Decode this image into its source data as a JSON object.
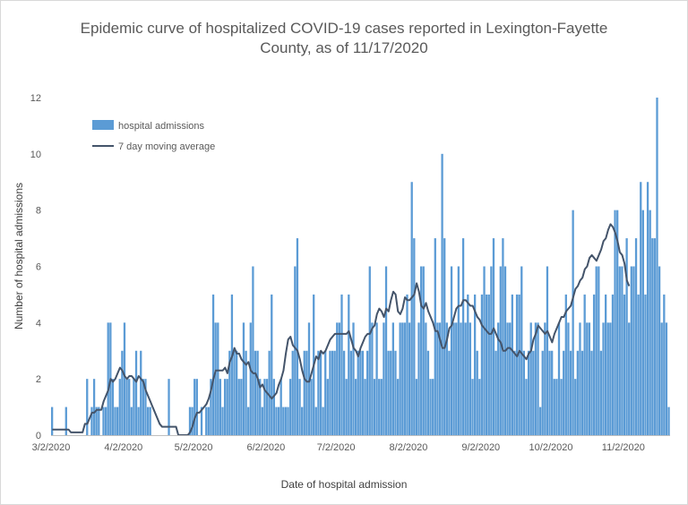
{
  "chart_data": {
    "type": "bar",
    "title_line1": "Epidemic curve of hospitalized COVID-19 cases reported in Lexington-Fayette",
    "title_line2": "County, as of 11/17/2020",
    "xlabel": "Date of hospital admission",
    "ylabel": "Number of hospital admissions",
    "ylim": [
      0,
      12
    ],
    "yticks": [
      0,
      2,
      4,
      6,
      8,
      10,
      12
    ],
    "start_date": "3/2/2020",
    "xtick_labels": [
      "3/2/2020",
      "4/2/2020",
      "5/2/2020",
      "6/2/2020",
      "7/2/2020",
      "8/2/2020",
      "9/2/2020",
      "10/2/2020",
      "11/2/2020"
    ],
    "xtick_day_index": [
      0,
      31,
      61,
      92,
      122,
      153,
      184,
      214,
      245
    ],
    "grid": false,
    "legend": {
      "position": "top-left",
      "entries": [
        "hospital admissions",
        "7 day moving average"
      ]
    },
    "colors": {
      "bars": "#5b9bd5",
      "line": "#44546a"
    },
    "series": [
      {
        "name": "hospital admissions",
        "values": [
          1,
          0,
          0,
          0,
          0,
          0,
          1,
          0,
          0,
          0,
          0,
          0,
          0,
          0,
          0,
          2,
          0,
          1,
          2,
          1,
          1,
          0,
          1,
          1,
          4,
          4,
          2,
          1,
          1,
          2,
          3,
          4,
          2,
          2,
          1,
          2,
          3,
          1,
          3,
          2,
          2,
          1,
          1,
          0,
          0,
          0,
          0,
          0,
          0,
          0,
          2,
          0,
          0,
          0,
          0,
          0,
          0,
          0,
          0,
          1,
          1,
          2,
          2,
          0,
          1,
          0,
          1,
          1,
          2,
          5,
          4,
          4,
          2,
          1,
          2,
          2,
          3,
          5,
          3,
          3,
          2,
          2,
          4,
          3,
          1,
          4,
          6,
          3,
          3,
          2,
          1,
          2,
          2,
          3,
          5,
          2,
          1,
          1,
          2,
          1,
          1,
          1,
          2,
          3,
          6,
          7,
          2,
          1,
          3,
          3,
          4,
          2,
          5,
          1,
          3,
          3,
          1,
          3,
          2,
          3,
          3,
          3,
          4,
          4,
          5,
          3,
          2,
          5,
          3,
          4,
          2,
          3,
          3,
          3,
          2,
          3,
          6,
          4,
          2,
          4,
          2,
          2,
          4,
          6,
          3,
          3,
          4,
          3,
          2,
          4,
          4,
          4,
          5,
          4,
          9,
          7,
          2,
          4,
          6,
          6,
          4,
          3,
          2,
          2,
          7,
          4,
          4,
          10,
          7,
          4,
          3,
          6,
          4,
          4,
          6,
          4,
          7,
          4,
          5,
          4,
          2,
          5,
          3,
          2,
          5,
          6,
          5,
          5,
          6,
          7,
          3,
          4,
          6,
          7,
          6,
          4,
          4,
          5,
          3,
          5,
          5,
          6,
          3,
          2,
          3,
          4,
          3,
          4,
          4,
          1,
          3,
          4,
          6,
          3,
          3,
          2,
          2,
          4,
          2,
          3,
          5,
          4,
          3,
          8,
          2,
          3,
          4,
          3,
          5,
          4,
          4,
          3,
          5,
          6,
          6,
          3,
          4,
          5,
          4,
          4,
          5,
          8,
          8,
          6,
          6,
          5,
          7,
          4,
          6,
          6,
          7,
          5,
          9,
          8,
          5,
          9,
          8,
          7,
          7,
          12,
          6,
          4,
          5,
          4,
          1
        ]
      },
      {
        "name": "7 day moving average",
        "values": [
          0.2,
          0.2,
          0.2,
          0.2,
          0.2,
          0.2,
          0.2,
          0.2,
          0.1,
          0.1,
          0.1,
          0.1,
          0.1,
          0.1,
          0.4,
          0.4,
          0.6,
          0.8,
          0.8,
          0.9,
          0.9,
          0.9,
          1.2,
          1.4,
          1.6,
          2.0,
          1.9,
          2.0,
          2.2,
          2.4,
          2.3,
          2.1,
          2.0,
          2.1,
          2.1,
          2.0,
          1.9,
          2.1,
          2.0,
          1.9,
          1.6,
          1.4,
          1.2,
          1.0,
          0.8,
          0.6,
          0.4,
          0.3,
          0.3,
          0.3,
          0.3,
          0.3,
          0.3,
          0.3,
          0.0,
          0.0,
          0.0,
          0.0,
          0.0,
          0.1,
          0.3,
          0.6,
          0.8,
          0.8,
          0.9,
          1.0,
          1.1,
          1.3,
          1.6,
          2.0,
          2.3,
          2.3,
          2.3,
          2.3,
          2.4,
          2.2,
          2.6,
          2.8,
          3.1,
          2.9,
          2.9,
          2.7,
          2.6,
          2.5,
          2.6,
          2.3,
          2.2,
          2.2,
          2.0,
          1.7,
          1.8,
          1.6,
          1.5,
          1.4,
          1.3,
          1.4,
          1.5,
          1.8,
          2.0,
          2.3,
          2.9,
          3.4,
          3.5,
          3.2,
          3.1,
          3.0,
          2.7,
          2.3,
          2.0,
          1.9,
          1.9,
          2.2,
          2.5,
          2.8,
          2.7,
          3.0,
          2.9,
          3.0,
          3.2,
          3.4,
          3.5,
          3.6,
          3.6,
          3.6,
          3.6,
          3.6,
          3.6,
          3.7,
          3.4,
          3.1,
          3.0,
          2.8,
          3.1,
          3.3,
          3.5,
          3.6,
          3.6,
          3.8,
          3.9,
          4.3,
          4.5,
          4.4,
          4.2,
          4.5,
          4.4,
          4.8,
          5.1,
          5.0,
          4.4,
          4.3,
          4.5,
          4.9,
          4.8,
          4.8,
          4.9,
          5.0,
          5.4,
          5.1,
          4.6,
          4.5,
          4.7,
          4.4,
          4.2,
          4.0,
          3.7,
          3.7,
          3.4,
          3.1,
          3.1,
          3.4,
          3.8,
          3.9,
          4.2,
          4.5,
          4.6,
          4.6,
          4.8,
          4.8,
          4.7,
          4.6,
          4.6,
          4.4,
          4.2,
          4.1,
          3.9,
          3.8,
          3.7,
          3.6,
          3.6,
          3.8,
          3.6,
          3.4,
          3.3,
          3.0,
          3.0,
          3.1,
          3.1,
          3.0,
          2.9,
          2.8,
          3.0,
          2.9,
          2.8,
          2.7,
          2.9,
          3.0,
          3.4,
          3.6,
          3.9,
          3.8,
          3.7,
          3.6,
          3.7,
          3.5,
          3.3,
          3.6,
          3.8,
          4.0,
          4.2,
          4.2,
          4.4,
          4.5,
          4.6,
          4.9,
          5.2,
          5.3,
          5.5,
          5.6,
          5.9,
          6.0,
          6.3,
          6.4,
          6.3,
          6.2,
          6.4,
          6.6,
          6.9,
          7.0,
          7.3,
          7.5,
          7.4,
          7.2,
          6.9,
          6.5,
          6.4,
          6.1,
          5.5,
          5.3
        ]
      }
    ]
  }
}
